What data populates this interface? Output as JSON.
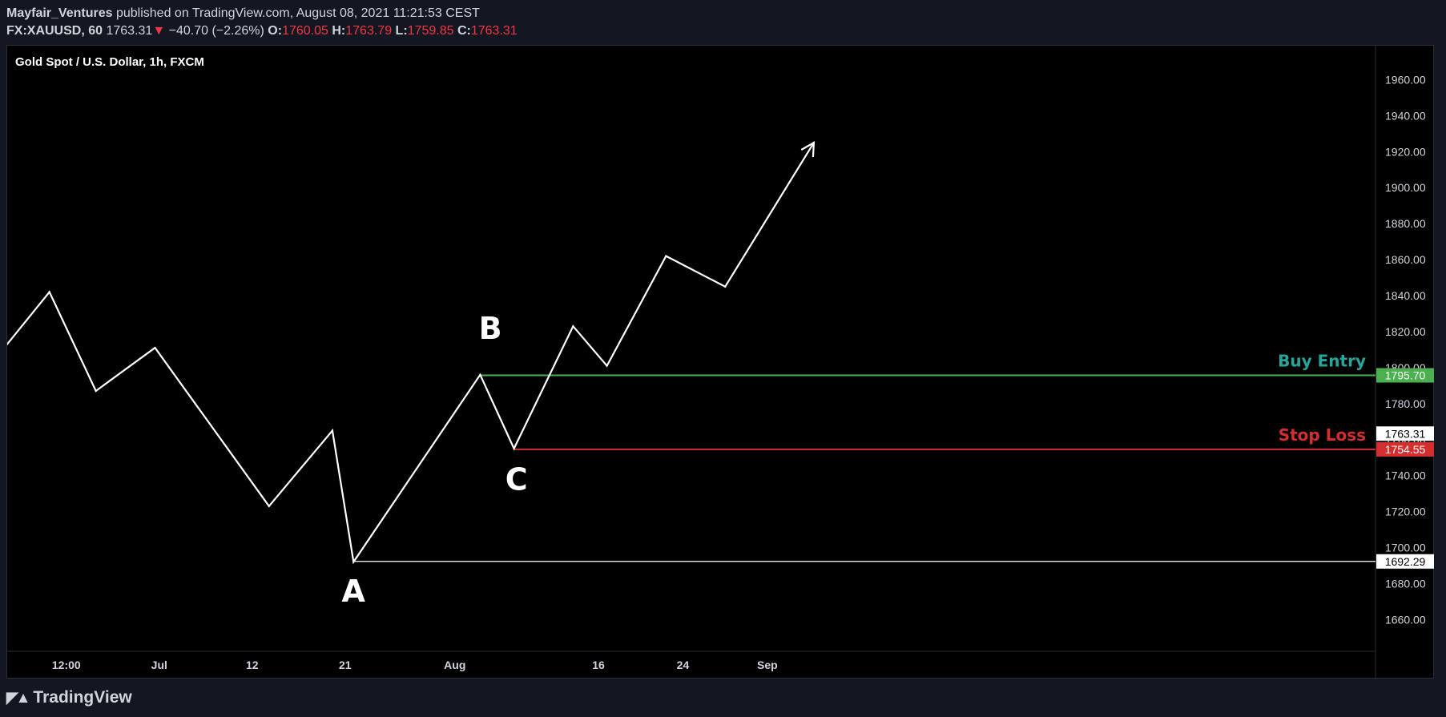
{
  "header": {
    "publisher": "Mayfair_Ventures",
    "published_text": "published on TradingView.com, August 08, 2021 11:21:53 CEST",
    "symbol": "FX:XAUUSD, 60",
    "last": "1763.31",
    "change_arrow": "▼",
    "change": "−40.70 (−2.26%)",
    "o_label": "O:",
    "o": "1760.05",
    "h_label": "H:",
    "h": "1763.79",
    "l_label": "L:",
    "l": "1759.85",
    "c_label": "C:",
    "c": "1763.31"
  },
  "footer": {
    "logo_text": "TradingView",
    "logo_icon": "tradingview-logo-icon"
  },
  "colors": {
    "background": "#000000",
    "frame": "#131722",
    "line": "#ffffff",
    "buy_entry": "#26a69a",
    "buy_entry_line": "#4caf50",
    "stop_loss": "#d32f2f",
    "red_text": "#f23645"
  },
  "chart_data": {
    "type": "line",
    "title": "Gold Spot / U.S. Dollar, 1h, FXCM",
    "ylim": [
      1645,
      1970
    ],
    "y_ticks": [
      1660,
      1680,
      1700,
      1720,
      1740,
      1760,
      1780,
      1800,
      1820,
      1840,
      1860,
      1880,
      1900,
      1920,
      1940,
      1960
    ],
    "y_tick_labels": [
      "1660.00",
      "1680.00",
      "1700.00",
      "1720.00",
      "1740.00",
      "1760.00",
      "1780.00",
      "1800.00",
      "1820.00",
      "1840.00",
      "1860.00",
      "1880.00",
      "1900.00",
      "1920.00",
      "1940.00",
      "1960.00"
    ],
    "x_tick_labels": [
      "12:00",
      "Jul",
      "12",
      "21",
      "Aug",
      "16",
      "24",
      "Sep"
    ],
    "x_tick_index": [
      0.7,
      1.8,
      2.9,
      4.0,
      5.3,
      7.0,
      8.0,
      9.0
    ],
    "x_range": [
      0,
      16.2
    ],
    "series": [
      {
        "points": [
          [
            0,
            1813
          ],
          [
            0.5,
            1842
          ],
          [
            1.05,
            1787
          ],
          [
            1.75,
            1811
          ],
          [
            3.1,
            1723
          ],
          [
            3.85,
            1765
          ],
          [
            4.1,
            1692
          ],
          [
            5.6,
            1796
          ],
          [
            6.0,
            1755
          ],
          [
            6.7,
            1823
          ],
          [
            7.1,
            1801
          ],
          [
            7.8,
            1862
          ],
          [
            8.5,
            1845
          ],
          [
            9.55,
            1925
          ]
        ],
        "arrow_end": true
      }
    ],
    "price_lines": [
      {
        "label": "Buy Entry",
        "value": 1795.7,
        "value_label": "1795.70",
        "start_index": 5.6,
        "kind": "buy"
      },
      {
        "label": "Stop Loss",
        "value": 1754.55,
        "value_label": "1754.55",
        "start_index": 6.0,
        "kind": "stop"
      },
      {
        "label": "",
        "value": 1692.29,
        "value_label": "1692.29",
        "start_index": 4.1,
        "kind": "low"
      }
    ],
    "last_price": {
      "value": 1763.31,
      "value_label": "1763.31"
    },
    "annotations": [
      {
        "text": "A",
        "x": 4.1,
        "y": 1670
      },
      {
        "text": "B",
        "x": 5.72,
        "y": 1816
      },
      {
        "text": "C",
        "x": 6.03,
        "y": 1732
      }
    ]
  }
}
